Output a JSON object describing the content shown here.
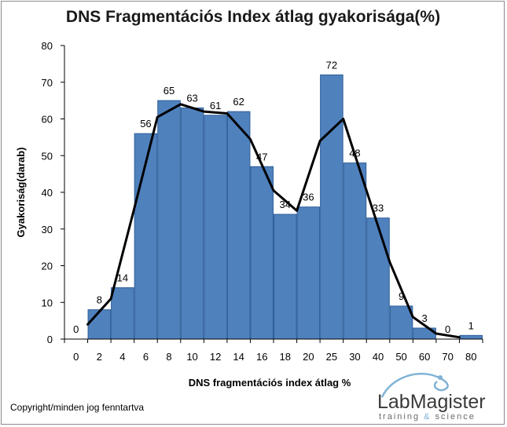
{
  "chart_data": {
    "type": "bar",
    "title": "DNS Fragmentációs Index átlag gyakorisága(%)",
    "xlabel": "DNS fragmentációs index átlag %",
    "ylabel": "Gyakoriság(darab)",
    "categories": [
      "0",
      "2",
      "4",
      "6",
      "8",
      "10",
      "12",
      "14",
      "16",
      "18",
      "20",
      "25",
      "30",
      "40",
      "50",
      "60",
      "70",
      "80"
    ],
    "values": [
      0,
      8,
      14,
      56,
      65,
      63,
      61,
      62,
      47,
      34,
      36,
      72,
      48,
      33,
      9,
      3,
      0,
      1
    ],
    "data_labels": [
      "0",
      "8",
      "14",
      "56",
      "65",
      "63",
      "61",
      "62",
      "47",
      "34",
      "36",
      "72",
      "48",
      "33",
      "9",
      "3",
      "0",
      "1"
    ],
    "trend_line": [
      4,
      11,
      35.5,
      60.5,
      64,
      62,
      61.5,
      54.5,
      40.5,
      35,
      54,
      60,
      40.5,
      21,
      6,
      1.5,
      0.5
    ],
    "ylim": [
      0,
      80
    ],
    "yticks": [
      0,
      10,
      20,
      30,
      40,
      50,
      60,
      70,
      80
    ],
    "grid": false,
    "legend": "none",
    "colors": {
      "bar": "#4f81bd",
      "bar_edge": "#2f5f99",
      "line": "#000000"
    }
  },
  "footer": {
    "copyright": "Copyright/minden jog fenntartva",
    "logo_name": "LabMagister",
    "logo_tag_1": "training ",
    "logo_tag_amp": "&",
    "logo_tag_2": " science"
  }
}
